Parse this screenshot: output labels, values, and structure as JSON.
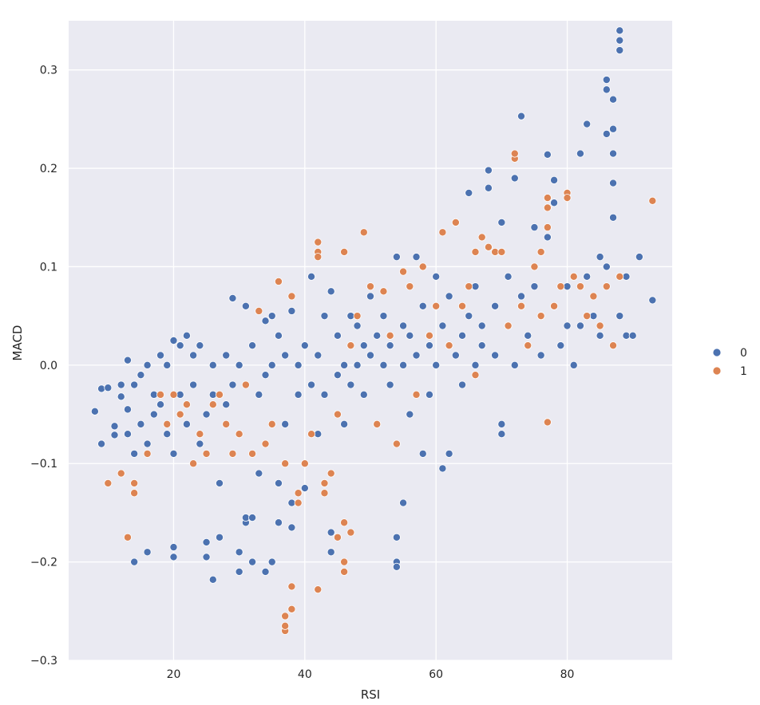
{
  "chart_data": {
    "type": "scatter",
    "title": "",
    "xlabel": "RSI",
    "ylabel": "MACD",
    "xlim": [
      4,
      96
    ],
    "ylim": [
      -0.3,
      0.35
    ],
    "x_ticks": [
      20,
      40,
      60,
      80
    ],
    "x_tick_labels": [
      "20",
      "40",
      "60",
      "80"
    ],
    "y_ticks": [
      -0.3,
      -0.2,
      -0.1,
      0.0,
      0.1,
      0.2,
      0.3
    ],
    "y_tick_labels": [
      "−0.3",
      "−0.2",
      "−0.1",
      "0.0",
      "0.1",
      "0.2",
      "0.3"
    ],
    "grid": true,
    "legend_position": "right",
    "background_color": "#eaeaf2",
    "series": [
      {
        "name": "0",
        "color": "#4c72b0",
        "points": [
          [
            8,
            -0.047
          ],
          [
            9,
            -0.08
          ],
          [
            9,
            -0.024
          ],
          [
            10,
            -0.023
          ],
          [
            11,
            -0.062
          ],
          [
            11,
            -0.071
          ],
          [
            12,
            -0.02
          ],
          [
            12,
            -0.032
          ],
          [
            13,
            0.005
          ],
          [
            13,
            -0.045
          ],
          [
            14,
            -0.2
          ],
          [
            14,
            -0.09
          ],
          [
            14,
            -0.02
          ],
          [
            15,
            -0.01
          ],
          [
            15,
            -0.06
          ],
          [
            16,
            -0.19
          ],
          [
            16,
            -0.08
          ],
          [
            16,
            0.0
          ],
          [
            17,
            -0.03
          ],
          [
            17,
            -0.05
          ],
          [
            18,
            0.01
          ],
          [
            18,
            -0.04
          ],
          [
            19,
            0.0
          ],
          [
            19,
            -0.07
          ],
          [
            20,
            -0.195
          ],
          [
            20,
            -0.185
          ],
          [
            20,
            0.025
          ],
          [
            20,
            -0.09
          ],
          [
            21,
            0.02
          ],
          [
            21,
            -0.03
          ],
          [
            22,
            -0.06
          ],
          [
            22,
            0.03
          ],
          [
            23,
            -0.02
          ],
          [
            23,
            0.01
          ],
          [
            24,
            -0.08
          ],
          [
            24,
            0.02
          ],
          [
            25,
            -0.18
          ],
          [
            25,
            -0.195
          ],
          [
            25,
            -0.05
          ],
          [
            26,
            -0.218
          ],
          [
            26,
            0.0
          ],
          [
            26,
            -0.03
          ],
          [
            27,
            -0.175
          ],
          [
            27,
            -0.12
          ],
          [
            28,
            0.01
          ],
          [
            28,
            -0.04
          ],
          [
            29,
            0.068
          ],
          [
            29,
            -0.02
          ],
          [
            30,
            -0.21
          ],
          [
            30,
            -0.19
          ],
          [
            30,
            0.0
          ],
          [
            31,
            -0.16
          ],
          [
            31,
            -0.155
          ],
          [
            31,
            0.06
          ],
          [
            32,
            -0.2
          ],
          [
            32,
            -0.155
          ],
          [
            32,
            0.02
          ],
          [
            33,
            -0.11
          ],
          [
            33,
            -0.03
          ],
          [
            34,
            -0.21
          ],
          [
            34,
            0.045
          ],
          [
            34,
            -0.01
          ],
          [
            35,
            -0.2
          ],
          [
            35,
            0.05
          ],
          [
            35,
            0.0
          ],
          [
            36,
            -0.16
          ],
          [
            36,
            -0.12
          ],
          [
            36,
            0.03
          ],
          [
            37,
            -0.06
          ],
          [
            37,
            0.01
          ],
          [
            38,
            -0.165
          ],
          [
            38,
            -0.14
          ],
          [
            38,
            0.055
          ],
          [
            39,
            -0.03
          ],
          [
            39,
            0.0
          ],
          [
            40,
            -0.125
          ],
          [
            40,
            -0.1
          ],
          [
            40,
            0.02
          ],
          [
            41,
            0.09
          ],
          [
            41,
            -0.02
          ],
          [
            42,
            -0.07
          ],
          [
            42,
            0.01
          ],
          [
            43,
            0.05
          ],
          [
            43,
            -0.03
          ],
          [
            44,
            -0.19
          ],
          [
            44,
            -0.17
          ],
          [
            44,
            0.075
          ],
          [
            45,
            0.03
          ],
          [
            45,
            -0.01
          ],
          [
            46,
            -0.06
          ],
          [
            46,
            0.0
          ],
          [
            47,
            0.05
          ],
          [
            47,
            -0.02
          ],
          [
            48,
            0.04
          ],
          [
            48,
            0.0
          ],
          [
            49,
            0.02
          ],
          [
            49,
            -0.03
          ],
          [
            50,
            0.07
          ],
          [
            50,
            0.01
          ],
          [
            51,
            -0.06
          ],
          [
            51,
            0.03
          ],
          [
            52,
            0.0
          ],
          [
            52,
            0.05
          ],
          [
            53,
            -0.02
          ],
          [
            53,
            0.02
          ],
          [
            54,
            -0.2
          ],
          [
            54,
            -0.205
          ],
          [
            54,
            -0.175
          ],
          [
            54,
            0.11
          ],
          [
            55,
            -0.14
          ],
          [
            55,
            0.0
          ],
          [
            55,
            0.04
          ],
          [
            56,
            0.03
          ],
          [
            56,
            -0.05
          ],
          [
            57,
            0.11
          ],
          [
            57,
            0.01
          ],
          [
            58,
            -0.09
          ],
          [
            58,
            0.06
          ],
          [
            59,
            0.02
          ],
          [
            59,
            -0.03
          ],
          [
            60,
            0.09
          ],
          [
            60,
            0.0
          ],
          [
            61,
            -0.105
          ],
          [
            61,
            0.04
          ],
          [
            62,
            -0.09
          ],
          [
            62,
            0.07
          ],
          [
            63,
            0.01
          ],
          [
            63,
            0.145
          ],
          [
            64,
            0.03
          ],
          [
            64,
            -0.02
          ],
          [
            65,
            0.175
          ],
          [
            65,
            0.05
          ],
          [
            66,
            0.0
          ],
          [
            66,
            0.08
          ],
          [
            67,
            0.04
          ],
          [
            67,
            0.02
          ],
          [
            68,
            0.198
          ],
          [
            68,
            0.18
          ],
          [
            69,
            0.06
          ],
          [
            69,
            0.01
          ],
          [
            70,
            -0.07
          ],
          [
            70,
            -0.06
          ],
          [
            70,
            0.145
          ],
          [
            71,
            0.04
          ],
          [
            71,
            0.09
          ],
          [
            72,
            0.19
          ],
          [
            72,
            0.0
          ],
          [
            73,
            0.253
          ],
          [
            73,
            0.07
          ],
          [
            74,
            0.03
          ],
          [
            75,
            0.14
          ],
          [
            75,
            0.08
          ],
          [
            76,
            0.05
          ],
          [
            76,
            0.01
          ],
          [
            77,
            0.214
          ],
          [
            77,
            0.13
          ],
          [
            78,
            0.188
          ],
          [
            78,
            0.165
          ],
          [
            78,
            0.06
          ],
          [
            79,
            0.02
          ],
          [
            80,
            0.08
          ],
          [
            80,
            0.04
          ],
          [
            81,
            0.0
          ],
          [
            82,
            0.215
          ],
          [
            82,
            0.04
          ],
          [
            83,
            0.245
          ],
          [
            83,
            0.09
          ],
          [
            84,
            0.05
          ],
          [
            85,
            0.11
          ],
          [
            85,
            0.03
          ],
          [
            86,
            0.1
          ],
          [
            86,
            0.235
          ],
          [
            86,
            0.29
          ],
          [
            86,
            0.28
          ],
          [
            87,
            0.27
          ],
          [
            87,
            0.24
          ],
          [
            87,
            0.215
          ],
          [
            87,
            0.185
          ],
          [
            87,
            0.15
          ],
          [
            88,
            0.34
          ],
          [
            88,
            0.33
          ],
          [
            88,
            0.32
          ],
          [
            88,
            0.05
          ],
          [
            89,
            0.09
          ],
          [
            89,
            0.03
          ],
          [
            90,
            0.03
          ],
          [
            91,
            0.11
          ],
          [
            93,
            0.066
          ],
          [
            14,
            -0.13
          ],
          [
            13,
            -0.07
          ]
        ]
      },
      {
        "name": "1",
        "color": "#dd8452",
        "points": [
          [
            10,
            -0.12
          ],
          [
            12,
            -0.11
          ],
          [
            13,
            -0.175
          ],
          [
            14,
            -0.12
          ],
          [
            14,
            -0.13
          ],
          [
            16,
            -0.09
          ],
          [
            19,
            -0.06
          ],
          [
            20,
            -0.03
          ],
          [
            22,
            -0.04
          ],
          [
            23,
            -0.1
          ],
          [
            24,
            -0.07
          ],
          [
            25,
            -0.09
          ],
          [
            26,
            -0.04
          ],
          [
            27,
            -0.03
          ],
          [
            28,
            -0.06
          ],
          [
            29,
            -0.09
          ],
          [
            30,
            -0.07
          ],
          [
            31,
            -0.02
          ],
          [
            32,
            -0.09
          ],
          [
            33,
            0.055
          ],
          [
            34,
            -0.08
          ],
          [
            35,
            -0.06
          ],
          [
            36,
            0.085
          ],
          [
            37,
            -0.1
          ],
          [
            37,
            -0.27
          ],
          [
            37,
            -0.265
          ],
          [
            37,
            -0.255
          ],
          [
            38,
            -0.248
          ],
          [
            38,
            -0.225
          ],
          [
            38,
            0.07
          ],
          [
            39,
            -0.13
          ],
          [
            40,
            -0.1
          ],
          [
            41,
            -0.07
          ],
          [
            42,
            0.125
          ],
          [
            42,
            0.115
          ],
          [
            42,
            0.11
          ],
          [
            42,
            -0.228
          ],
          [
            43,
            -0.13
          ],
          [
            44,
            -0.11
          ],
          [
            45,
            -0.05
          ],
          [
            45,
            -0.175
          ],
          [
            46,
            -0.2
          ],
          [
            46,
            -0.21
          ],
          [
            46,
            -0.16
          ],
          [
            46,
            0.115
          ],
          [
            47,
            -0.17
          ],
          [
            48,
            0.05
          ],
          [
            49,
            0.135
          ],
          [
            50,
            0.08
          ],
          [
            51,
            -0.06
          ],
          [
            52,
            0.075
          ],
          [
            53,
            0.03
          ],
          [
            54,
            -0.08
          ],
          [
            55,
            0.095
          ],
          [
            56,
            0.08
          ],
          [
            57,
            -0.03
          ],
          [
            58,
            0.1
          ],
          [
            59,
            0.03
          ],
          [
            60,
            0.06
          ],
          [
            61,
            0.135
          ],
          [
            62,
            0.02
          ],
          [
            63,
            0.145
          ],
          [
            64,
            0.06
          ],
          [
            65,
            0.08
          ],
          [
            66,
            0.115
          ],
          [
            67,
            0.13
          ],
          [
            68,
            0.12
          ],
          [
            69,
            0.115
          ],
          [
            70,
            0.115
          ],
          [
            71,
            0.04
          ],
          [
            72,
            0.21
          ],
          [
            72,
            0.215
          ],
          [
            73,
            0.06
          ],
          [
            74,
            0.02
          ],
          [
            75,
            0.1
          ],
          [
            76,
            0.115
          ],
          [
            77,
            0.17
          ],
          [
            77,
            0.16
          ],
          [
            77,
            0.14
          ],
          [
            77,
            -0.058
          ],
          [
            78,
            0.06
          ],
          [
            79,
            0.08
          ],
          [
            80,
            0.175
          ],
          [
            80,
            0.17
          ],
          [
            81,
            0.09
          ],
          [
            82,
            0.08
          ],
          [
            83,
            0.05
          ],
          [
            84,
            0.07
          ],
          [
            85,
            0.04
          ],
          [
            86,
            0.08
          ],
          [
            87,
            0.02
          ],
          [
            88,
            0.09
          ],
          [
            93,
            0.167
          ],
          [
            18,
            -0.03
          ],
          [
            21,
            -0.05
          ],
          [
            39,
            -0.14
          ],
          [
            43,
            -0.12
          ],
          [
            47,
            0.02
          ],
          [
            66,
            -0.01
          ],
          [
            76,
            0.05
          ]
        ]
      }
    ]
  }
}
